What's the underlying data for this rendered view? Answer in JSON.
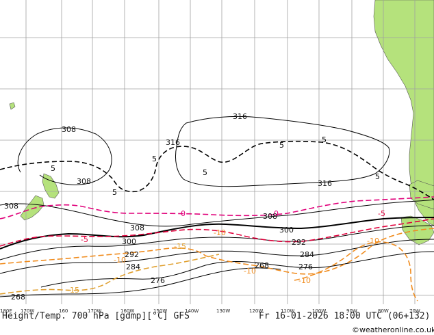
{
  "title": "Height/Temp. 700 hPa [gdmp][°C] GFS",
  "valid_time": "Fr 16-01-2026 18:00 UTC (06+132)",
  "credit": "©weatheronline.co.uk",
  "colors": {
    "ocean": "#ffffff",
    "land": "#b5e27c",
    "grid": "#a0a0a0",
    "height_contour": "#000000",
    "temp_positive": "#e0003c",
    "temp_zero": "#e0007a",
    "temp_negative": "#f08c1e",
    "temp_cold": "#e0a030"
  },
  "longitude_labels": [
    "180E",
    "170W",
    "160",
    "170W",
    "160W",
    "150W",
    "140W",
    "130W",
    "120W",
    "110W",
    "100W",
    "90W",
    "80W",
    "70W"
  ],
  "height_labels": [
    "316",
    "316",
    "316",
    "308",
    "308",
    "308",
    "308",
    "308",
    "300",
    "300",
    "292",
    "292",
    "284",
    "284",
    "276",
    "276",
    "268",
    "268"
  ],
  "temp_labels": [
    "5",
    "5",
    "5",
    "5",
    "5",
    "5",
    "5",
    "0",
    "0",
    "-5",
    "-5",
    "-10",
    "-10",
    "-10",
    "-15",
    "-15",
    "-10",
    "-10"
  ],
  "legend": {
    "height_units": "gdmp",
    "temp_units": "°C"
  }
}
